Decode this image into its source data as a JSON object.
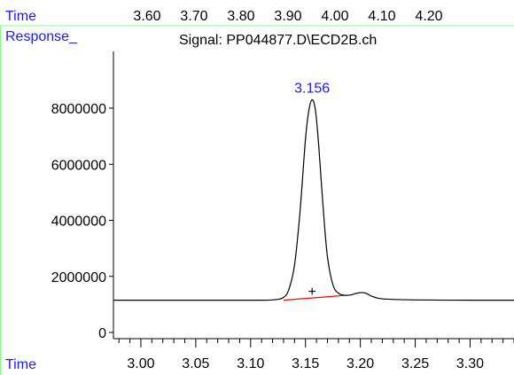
{
  "header": {
    "time_label": "Time",
    "time_ticks": [
      "3.60",
      "3.70",
      "3.80",
      "3.90",
      "4.00",
      "4.10",
      "4.20"
    ]
  },
  "panel": {
    "response_label": "Response_",
    "signal_title": "Signal: PP044877.D\\ECD2B.ch",
    "time_label_bottom": "Time"
  },
  "colors": {
    "label_blue": "#1a1aff",
    "frame_green": "#80ff80",
    "baseline_red": "#ff0000",
    "trace": "#000000"
  },
  "chart_data": {
    "type": "line",
    "title": "Signal: PP044877.D\\ECD2B.ch",
    "xlabel": "Time",
    "ylabel": "Response_",
    "xlim": [
      2.975,
      3.34
    ],
    "ylim": [
      0,
      9000000
    ],
    "x_ticks": [
      "3.00",
      "3.05",
      "3.10",
      "3.15",
      "3.20",
      "3.25",
      "3.30"
    ],
    "y_ticks": [
      "0",
      "2000000",
      "4000000",
      "6000000",
      "8000000"
    ],
    "series": [
      {
        "x": [
          2.975,
          3.05,
          3.1,
          3.12,
          3.13,
          3.135,
          3.14,
          3.145,
          3.15,
          3.153,
          3.156,
          3.159,
          3.162,
          3.166,
          3.17,
          3.175,
          3.18,
          3.185,
          3.19,
          3.195,
          3.2,
          3.205,
          3.21,
          3.22,
          3.25,
          3.3,
          3.34
        ],
        "y": [
          1150000,
          1150000,
          1150000,
          1160000,
          1250000,
          1550000,
          2400000,
          4300000,
          6900000,
          7900000,
          8300000,
          7950000,
          6700000,
          4500000,
          2700000,
          1700000,
          1400000,
          1330000,
          1330000,
          1380000,
          1420000,
          1400000,
          1300000,
          1200000,
          1160000,
          1150000,
          1150000
        ]
      }
    ],
    "peak_annotation": {
      "x": 3.156,
      "label": "3.156"
    },
    "baseline_segment": {
      "x": [
        3.13,
        3.188
      ],
      "y": [
        1150000,
        1330000
      ]
    },
    "marker": {
      "x": 3.156,
      "y": 1450000,
      "symbol": "+"
    },
    "grid": false
  }
}
